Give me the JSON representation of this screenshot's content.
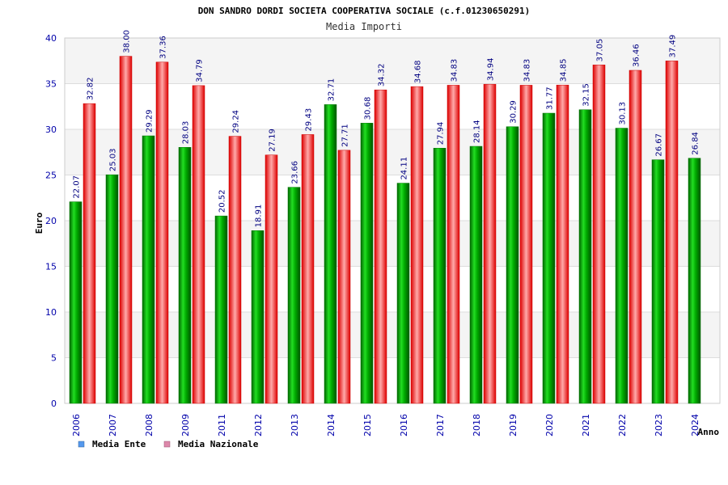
{
  "chart_data": {
    "type": "bar",
    "title": "DON SANDRO DORDI SOCIETA COOPERATIVA SOCIALE (c.f.01230650291)",
    "subtitle": "Media Importi",
    "xlabel": "Anno",
    "ylabel": "Euro",
    "ylim": [
      0,
      40
    ],
    "yticks": [
      0,
      5,
      10,
      15,
      20,
      25,
      30,
      35,
      40
    ],
    "grid": true,
    "legend_position": "bottom-left",
    "categories": [
      "2006",
      "2007",
      "2008",
      "2009",
      "2011",
      "2012",
      "2013",
      "2014",
      "2015",
      "2016",
      "2017",
      "2018",
      "2019",
      "2020",
      "2021",
      "2022",
      "2023",
      "2024"
    ],
    "series": [
      {
        "name": "Media Ente",
        "color": "#00b000",
        "legend_color": "#5599ee",
        "values": [
          22.07,
          25.03,
          29.29,
          28.03,
          20.52,
          18.91,
          23.66,
          32.71,
          30.68,
          24.11,
          27.94,
          28.14,
          30.29,
          31.77,
          32.15,
          30.13,
          26.67,
          26.84
        ],
        "labels": [
          "22.07",
          "25.03",
          "29.29",
          "28.03",
          "20.52",
          "18.91",
          "23.66",
          "32.71",
          "30.68",
          "24.11",
          "27.94",
          "28.14",
          "30.29",
          "31.77",
          "32.15",
          "30.13",
          "26.67",
          "26.84"
        ]
      },
      {
        "name": "Media Nazionale",
        "color": "#ee2222",
        "legend_color": "#dd88aa",
        "values": [
          32.82,
          38.0,
          37.36,
          34.79,
          29.24,
          27.19,
          29.43,
          27.71,
          34.32,
          34.68,
          34.83,
          34.94,
          34.83,
          34.85,
          37.05,
          36.46,
          37.49,
          null
        ],
        "labels": [
          "32.82",
          "38.00",
          "37.36",
          "34.79",
          "29.24",
          "27.19",
          "29.43",
          "27.71",
          "34.32",
          "34.68",
          "34.83",
          "34.94",
          "34.83",
          "34.85",
          "37.05",
          "36.46",
          "37.49",
          null
        ]
      }
    ]
  }
}
